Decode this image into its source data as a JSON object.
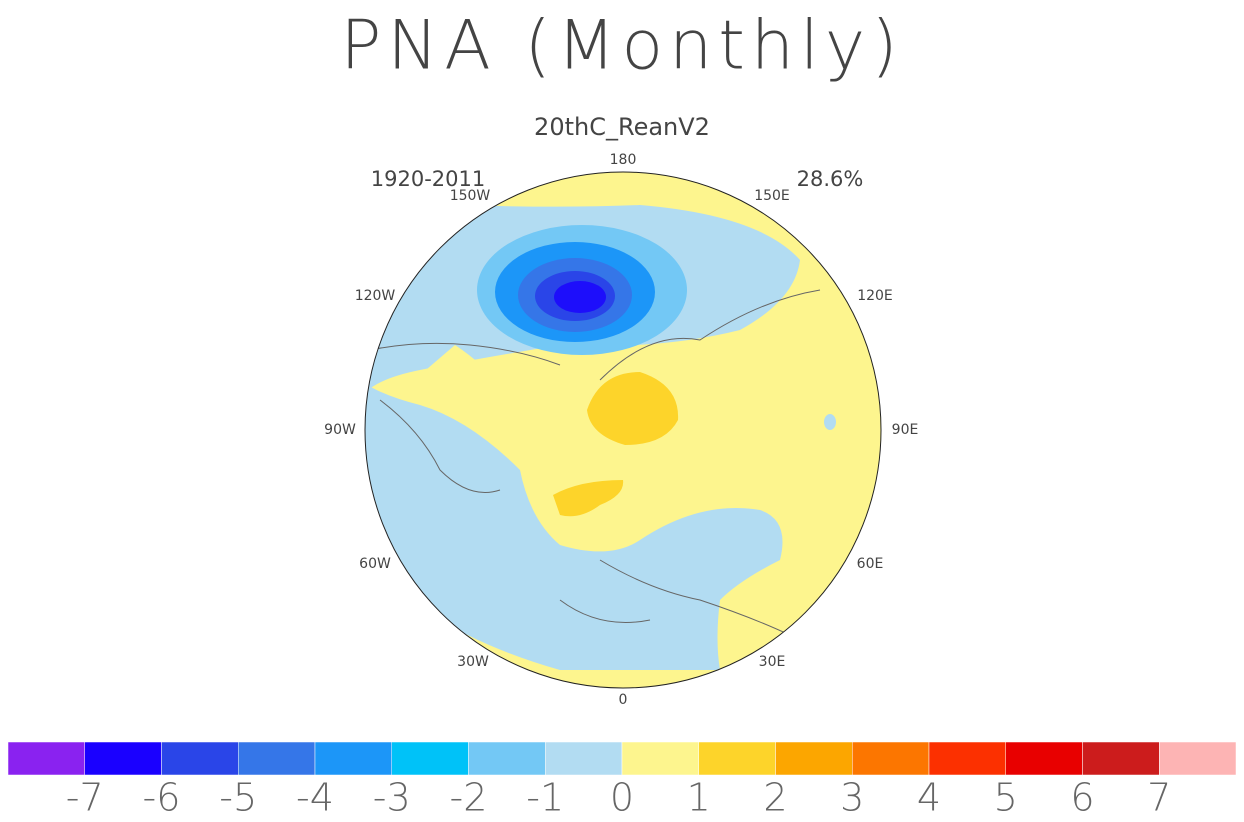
{
  "header": {
    "title": "PNA (Monthly)",
    "subtitle": "20thC_ReanV2"
  },
  "map": {
    "period": "1920-2011",
    "variance": "28.6%",
    "lon_labels": [
      "180",
      "150E",
      "120E",
      "90E",
      "60E",
      "30E",
      "0",
      "30W",
      "60W",
      "90W",
      "120W",
      "150W"
    ]
  },
  "colorbar": {
    "colors": [
      "#8a22f0",
      "#1a00ff",
      "#2a45e8",
      "#3576e8",
      "#1c96f8",
      "#00c2f8",
      "#73c8f5",
      "#b2dcf2",
      "#fdf58e",
      "#fdd42a",
      "#fca600",
      "#fc7600",
      "#fc3000",
      "#e80000",
      "#cc1c1c",
      "#fdb4b4"
    ],
    "ticks": [
      -7,
      -6,
      -5,
      -4,
      -3,
      -2,
      -1,
      0,
      1,
      2,
      3,
      4,
      5,
      6,
      7
    ]
  }
}
